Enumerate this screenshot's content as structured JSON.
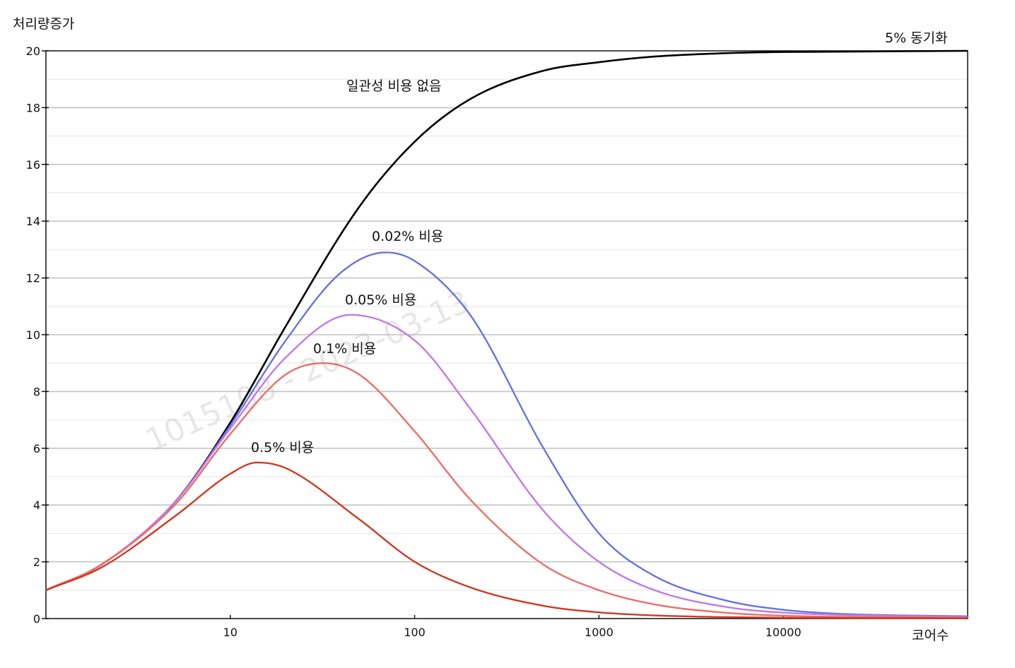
{
  "chart_data": {
    "type": "line",
    "title": "",
    "ylabel": "처리량증가",
    "xlabel": "코어수",
    "x_scale": "log",
    "xlim": [
      1,
      100000
    ],
    "ylim": [
      0,
      20
    ],
    "x_ticks": [
      10,
      100,
      1000,
      10000
    ],
    "y_ticks": [
      0,
      2,
      4,
      6,
      8,
      10,
      12,
      14,
      16,
      18,
      20
    ],
    "grid": true,
    "legend": "none",
    "annotation": "5% 동기화",
    "watermark": "1015108 - 2023-03-13",
    "series": [
      {
        "name": "일관성 비용 없음",
        "color": "#000000",
        "x": [
          1,
          2,
          5,
          10,
          20,
          50,
          100,
          200,
          500,
          1000,
          2000,
          5000,
          10000,
          100000
        ],
        "y": [
          1.0,
          1.9,
          4.1,
          6.9,
          10.3,
          14.5,
          16.8,
          18.3,
          19.3,
          19.6,
          19.8,
          19.92,
          19.96,
          20.0
        ]
      },
      {
        "name": "0.02% 비용",
        "color": "#6a72e0",
        "x": [
          1,
          2,
          5,
          10,
          20,
          40,
          70,
          100,
          200,
          500,
          1000,
          2000,
          5000,
          10000,
          20000,
          100000
        ],
        "y": [
          1.0,
          1.9,
          4.1,
          6.8,
          9.8,
          12.2,
          12.9,
          12.6,
          10.7,
          6.0,
          3.0,
          1.5,
          0.62,
          0.31,
          0.17,
          0.08
        ]
      },
      {
        "name": "0.05% 비용",
        "color": "#c07ae6",
        "x": [
          1,
          2,
          5,
          10,
          20,
          45,
          100,
          200,
          500,
          1000,
          2000,
          5000,
          10000,
          100000
        ],
        "y": [
          1.0,
          1.9,
          4.1,
          6.7,
          9.2,
          10.7,
          9.8,
          7.4,
          3.8,
          2.0,
          1.0,
          0.4,
          0.21,
          0.05
        ]
      },
      {
        "name": "0.1% 비용",
        "color": "#e8706a",
        "x": [
          1,
          2,
          5,
          10,
          20,
          32,
          50,
          100,
          200,
          500,
          1000,
          2000,
          5000,
          10000,
          100000
        ],
        "y": [
          1.0,
          1.9,
          4.0,
          6.5,
          8.6,
          9.0,
          8.6,
          6.6,
          4.2,
          1.9,
          1.0,
          0.5,
          0.2,
          0.1,
          0.03
        ]
      },
      {
        "name": "0.5% 비용",
        "color": "#cc3a22",
        "x": [
          1,
          2,
          5,
          10,
          14,
          20,
          50,
          100,
          200,
          500,
          1000,
          2000,
          5000,
          10000,
          100000
        ],
        "y": [
          1.0,
          1.8,
          3.6,
          5.1,
          5.5,
          5.3,
          3.5,
          2.0,
          1.1,
          0.45,
          0.22,
          0.11,
          0.05,
          0.03,
          0.01
        ]
      }
    ]
  }
}
